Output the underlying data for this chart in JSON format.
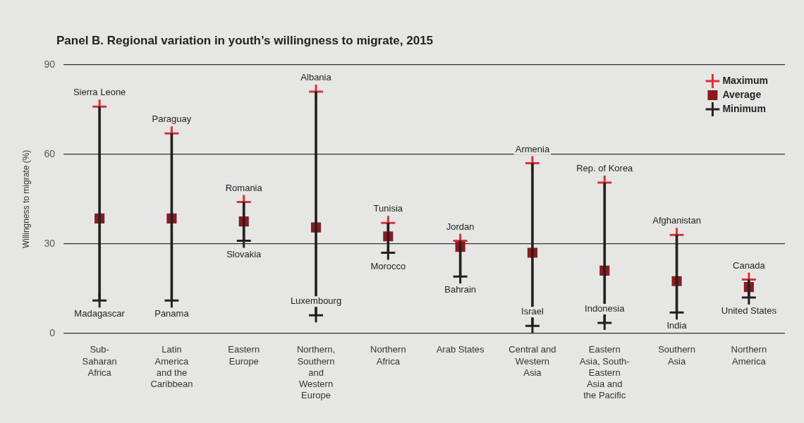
{
  "chart_data": {
    "type": "scatter",
    "title": "Panel B. Regional variation in youth’s willingness to migrate, 2015",
    "ylabel": "Willingness to migrate (%)",
    "categories": [
      "Sub-Saharan Africa",
      "Latin America and the Caribbean",
      "Eastern Europe",
      "Northern, Southern and Western Europe",
      "Northern Africa",
      "Arab States",
      "Central and Western Asia",
      "Eastern Asia, South-Eastern Asia and the Pacific",
      "Southern Asia",
      "Northern America"
    ],
    "series": [
      {
        "type": "bar",
        "color": "#222222",
        "base": [
          11,
          11,
          31,
          6,
          27,
          19,
          2.5,
          3.5,
          7,
          12
        ],
        "values": [
          65,
          56,
          13,
          75,
          10,
          12,
          54.5,
          47,
          26,
          6
        ]
      },
      {
        "name": "Maximum",
        "color": "#d8323c",
        "marker": "cross",
        "values": [
          76,
          67,
          44,
          81,
          37,
          31,
          57,
          50.5,
          33,
          18
        ]
      },
      {
        "name": "Average",
        "color": "#8b1a1f",
        "marker": "square",
        "values": [
          38.5,
          38.5,
          37.5,
          35.5,
          32.5,
          29,
          27,
          21,
          17.5,
          15.5
        ]
      },
      {
        "name": "Minimum",
        "color": "#222222",
        "marker": "cross",
        "values": [
          11,
          11,
          31,
          6,
          27,
          19,
          2.5,
          3.5,
          7,
          12
        ]
      }
    ],
    "ylim": [
      0,
      90
    ],
    "yticks": [
      0,
      30,
      60,
      90
    ],
    "grid": "y",
    "legend": "top right",
    "annotations": [
      {
        "text": "Sierra Leone",
        "x": "Sub-Saharan Africa",
        "y": 76
      },
      {
        "text": "Madagascar",
        "x": "Sub-Saharan Africa",
        "y": 11
      },
      {
        "text": "Paraguay",
        "x": "Latin America and the Caribbean",
        "y": 67
      },
      {
        "text": "Panama",
        "x": "Latin America and the Caribbean",
        "y": 11
      },
      {
        "text": "Romania",
        "x": "Eastern Europe",
        "y": 44
      },
      {
        "text": "Slovakia",
        "x": "Eastern Europe",
        "y": 31
      },
      {
        "text": "Albania",
        "x": "Northern, Southern and Western Europe",
        "y": 81
      },
      {
        "text": "Luxembourg",
        "x": "Northern, Southern and Western Europe",
        "y": 6
      },
      {
        "text": "Tunisia",
        "x": "Northern Africa",
        "y": 37
      },
      {
        "text": "Morocco",
        "x": "Northern Africa",
        "y": 27
      },
      {
        "text": "Jordan",
        "x": "Arab States",
        "y": 31
      },
      {
        "text": "Bahrain",
        "x": "Arab States",
        "y": 19
      },
      {
        "text": "Armenia",
        "x": "Central and Western Asia",
        "y": 57
      },
      {
        "text": "Israel",
        "x": "Central and Western Asia",
        "y": 2.5
      },
      {
        "text": "Rep. of Korea",
        "x": "Eastern Asia, South-Eastern Asia and the Pacific",
        "y": 50.5
      },
      {
        "text": "Indonesia",
        "x": "Eastern Asia, South-Eastern Asia and the Pacific",
        "y": 3.5
      },
      {
        "text": "Afghanistan",
        "x": "Southern Asia",
        "y": 33
      },
      {
        "text": "India",
        "x": "Southern Asia",
        "y": 7
      },
      {
        "text": "Canada",
        "x": "Northern America",
        "y": 18
      },
      {
        "text": "United States",
        "x": "Northern America",
        "y": 12
      }
    ]
  }
}
